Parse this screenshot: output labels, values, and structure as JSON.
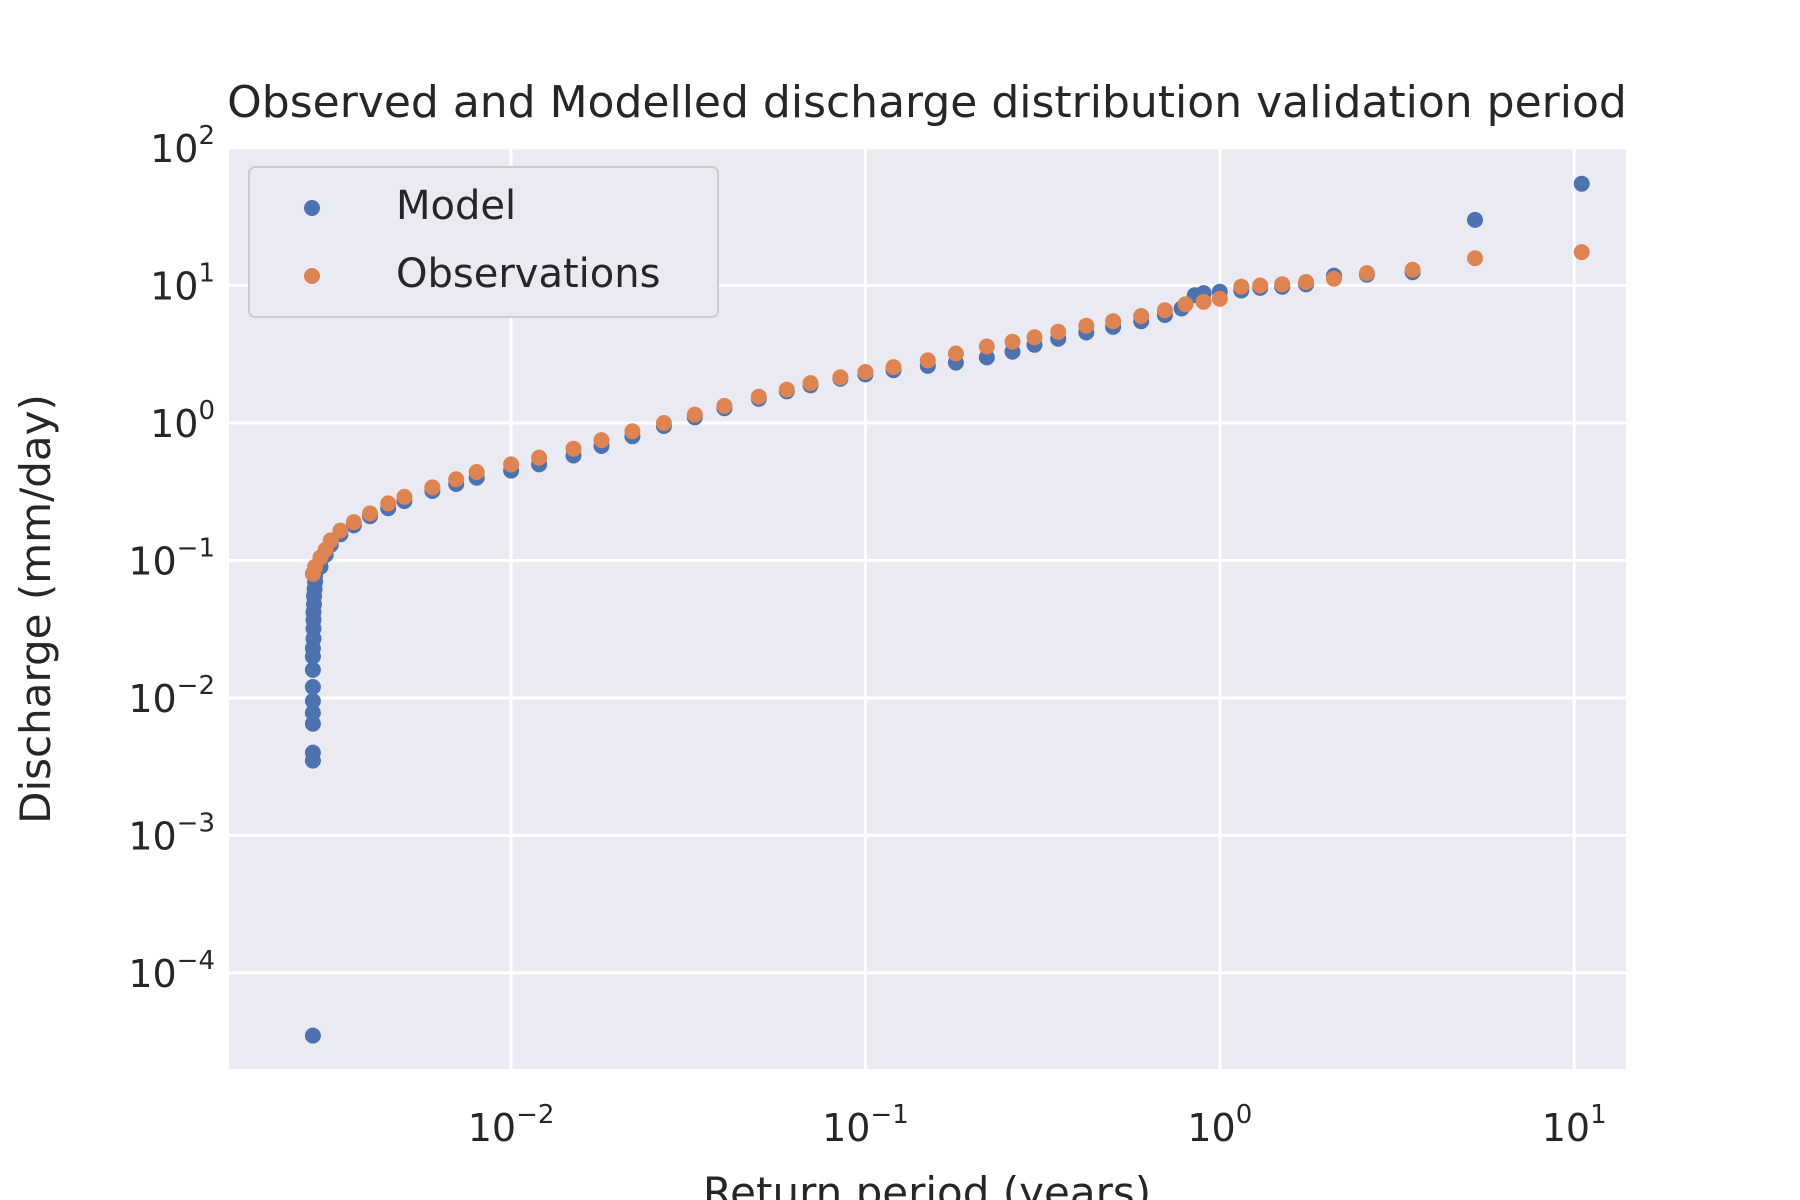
{
  "chart_data": {
    "type": "scatter",
    "title": "Observed and Modelled discharge distribution validation period",
    "xlabel": "Return period (years)",
    "ylabel": "Discharge (mm/day)",
    "xscale": "log",
    "yscale": "log",
    "xlim": [
      0.0016,
      14
    ],
    "ylim": [
      2e-05,
      100
    ],
    "x_ticks": [
      {
        "base": "10",
        "exp": "−2",
        "value": 0.01
      },
      {
        "base": "10",
        "exp": "−1",
        "value": 0.1
      },
      {
        "base": "10",
        "exp": "0",
        "value": 1
      },
      {
        "base": "10",
        "exp": "1",
        "value": 10
      }
    ],
    "y_ticks": [
      {
        "base": "10",
        "exp": "−4",
        "value": 0.0001
      },
      {
        "base": "10",
        "exp": "−3",
        "value": 0.001
      },
      {
        "base": "10",
        "exp": "−2",
        "value": 0.01
      },
      {
        "base": "10",
        "exp": "−1",
        "value": 0.1
      },
      {
        "base": "10",
        "exp": "0",
        "value": 1
      },
      {
        "base": "10",
        "exp": "1",
        "value": 10
      },
      {
        "base": "10",
        "exp": "2",
        "value": 100
      }
    ],
    "grid": true,
    "legend_position": "top-left",
    "series": [
      {
        "name": "Model",
        "color": "#4c72b0",
        "points": [
          [
            0.00276,
            3.5e-05
          ],
          [
            0.00276,
            0.0035
          ],
          [
            0.00276,
            0.004
          ],
          [
            0.00276,
            0.0065
          ],
          [
            0.00276,
            0.0078
          ],
          [
            0.00276,
            0.0095
          ],
          [
            0.00276,
            0.012
          ],
          [
            0.00276,
            0.016
          ],
          [
            0.00276,
            0.02
          ],
          [
            0.00276,
            0.023
          ],
          [
            0.00277,
            0.027
          ],
          [
            0.00277,
            0.032
          ],
          [
            0.00277,
            0.037
          ],
          [
            0.00277,
            0.042
          ],
          [
            0.00278,
            0.048
          ],
          [
            0.00278,
            0.055
          ],
          [
            0.00279,
            0.062
          ],
          [
            0.0028,
            0.07
          ],
          [
            0.0028,
            0.078
          ],
          [
            0.0029,
            0.09
          ],
          [
            0.003,
            0.11
          ],
          [
            0.0031,
            0.13
          ],
          [
            0.0033,
            0.155
          ],
          [
            0.0036,
            0.18
          ],
          [
            0.004,
            0.21
          ],
          [
            0.0045,
            0.24
          ],
          [
            0.005,
            0.27
          ],
          [
            0.006,
            0.32
          ],
          [
            0.007,
            0.36
          ],
          [
            0.008,
            0.4
          ],
          [
            0.01,
            0.45
          ],
          [
            0.012,
            0.5
          ],
          [
            0.015,
            0.58
          ],
          [
            0.018,
            0.68
          ],
          [
            0.022,
            0.8
          ],
          [
            0.027,
            0.95
          ],
          [
            0.033,
            1.1
          ],
          [
            0.04,
            1.28
          ],
          [
            0.05,
            1.5
          ],
          [
            0.06,
            1.7
          ],
          [
            0.07,
            1.88
          ],
          [
            0.085,
            2.1
          ],
          [
            0.1,
            2.25
          ],
          [
            0.12,
            2.42
          ],
          [
            0.15,
            2.6
          ],
          [
            0.18,
            2.75
          ],
          [
            0.22,
            3.0
          ],
          [
            0.26,
            3.3
          ],
          [
            0.3,
            3.7
          ],
          [
            0.35,
            4.1
          ],
          [
            0.42,
            4.55
          ],
          [
            0.5,
            5.0
          ],
          [
            0.6,
            5.5
          ],
          [
            0.7,
            6.1
          ],
          [
            0.78,
            6.8
          ],
          [
            0.85,
            8.5
          ],
          [
            0.9,
            8.8
          ],
          [
            1.0,
            9.0
          ],
          [
            1.15,
            9.2
          ],
          [
            1.3,
            9.6
          ],
          [
            1.5,
            9.8
          ],
          [
            1.75,
            10.2
          ],
          [
            2.1,
            11.8
          ],
          [
            2.6,
            12.0
          ],
          [
            3.5,
            12.5
          ],
          [
            5.25,
            30.0
          ],
          [
            10.5,
            55.0
          ]
        ]
      },
      {
        "name": "Observations",
        "color": "#dd8452",
        "points": [
          [
            0.00276,
            0.08
          ],
          [
            0.0028,
            0.09
          ],
          [
            0.0029,
            0.105
          ],
          [
            0.003,
            0.12
          ],
          [
            0.0031,
            0.14
          ],
          [
            0.0033,
            0.165
          ],
          [
            0.0036,
            0.19
          ],
          [
            0.004,
            0.22
          ],
          [
            0.0045,
            0.26
          ],
          [
            0.005,
            0.29
          ],
          [
            0.006,
            0.34
          ],
          [
            0.007,
            0.39
          ],
          [
            0.008,
            0.44
          ],
          [
            0.01,
            0.5
          ],
          [
            0.012,
            0.56
          ],
          [
            0.015,
            0.65
          ],
          [
            0.018,
            0.75
          ],
          [
            0.022,
            0.87
          ],
          [
            0.027,
            1.0
          ],
          [
            0.033,
            1.15
          ],
          [
            0.04,
            1.33
          ],
          [
            0.05,
            1.55
          ],
          [
            0.06,
            1.75
          ],
          [
            0.07,
            1.95
          ],
          [
            0.085,
            2.15
          ],
          [
            0.1,
            2.35
          ],
          [
            0.12,
            2.55
          ],
          [
            0.15,
            2.85
          ],
          [
            0.18,
            3.2
          ],
          [
            0.22,
            3.6
          ],
          [
            0.26,
            3.9
          ],
          [
            0.3,
            4.2
          ],
          [
            0.35,
            4.6
          ],
          [
            0.42,
            5.1
          ],
          [
            0.5,
            5.5
          ],
          [
            0.6,
            6.0
          ],
          [
            0.7,
            6.6
          ],
          [
            0.8,
            7.3
          ],
          [
            0.9,
            7.6
          ],
          [
            1.0,
            8.0
          ],
          [
            1.15,
            9.8
          ],
          [
            1.3,
            10.0
          ],
          [
            1.5,
            10.2
          ],
          [
            1.75,
            10.6
          ],
          [
            2.1,
            11.2
          ],
          [
            2.6,
            12.3
          ],
          [
            3.5,
            13.0
          ],
          [
            5.25,
            15.8
          ],
          [
            10.5,
            17.5
          ]
        ]
      }
    ]
  }
}
